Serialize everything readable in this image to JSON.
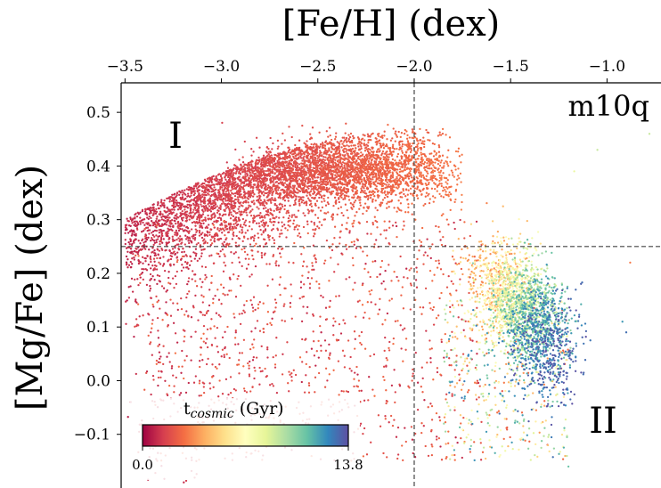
{
  "chart_data": {
    "type": "scatter",
    "xlabel": "[Fe/H] (dex)",
    "ylabel": "[Mg/Fe] (dex)",
    "x_axis_position": "top",
    "xlim": [
      -3.52,
      -0.72
    ],
    "ylim": [
      -0.2,
      0.555
    ],
    "x_ticks": [
      -3.5,
      -3.0,
      -2.5,
      -2.0,
      -1.5,
      -1.0
    ],
    "x_tick_labels": [
      "−3.5",
      "−3.0",
      "−2.5",
      "−2.0",
      "−1.5",
      "−1.0"
    ],
    "y_ticks": [
      0.5,
      0.4,
      0.3,
      0.2,
      0.1,
      0.0,
      -0.1
    ],
    "y_tick_labels": [
      "0.5",
      "0.4",
      "0.3",
      "0.2",
      "0.1",
      "0.0",
      "−0.1"
    ],
    "reference_lines": {
      "vertical_x": -2.0,
      "horizontal_y": 0.25,
      "style": "dashed"
    },
    "panel_label": "m10q",
    "region_labels": [
      "I",
      "II"
    ],
    "colorbar": {
      "label_main": "t",
      "label_sub": "cosmic",
      "label_unit": " (Gyr)",
      "min_label": "0.0",
      "max_label": "13.8",
      "range": [
        0.0,
        13.8
      ],
      "colormap": "Spectral",
      "stops": [
        "#9e0142",
        "#d53e4f",
        "#f46d43",
        "#fdae61",
        "#fee08b",
        "#ffffbf",
        "#e6f598",
        "#abdda4",
        "#66c2a5",
        "#3288bd",
        "#5e4fa2"
      ]
    },
    "point_populations": [
      {
        "region": "I",
        "fe_h_range": [
          -3.5,
          -1.75
        ],
        "mg_fe_range": [
          -0.15,
          0.47
        ],
        "t_cosmic_range": [
          0.5,
          3.0
        ],
        "approx_count": 9000
      },
      {
        "region": "II",
        "fe_h_range": [
          -2.0,
          -1.15
        ],
        "mg_fe_range": [
          -0.15,
          0.3
        ],
        "t_cosmic_range": [
          3.0,
          13.8
        ],
        "approx_count": 3000
      }
    ]
  }
}
